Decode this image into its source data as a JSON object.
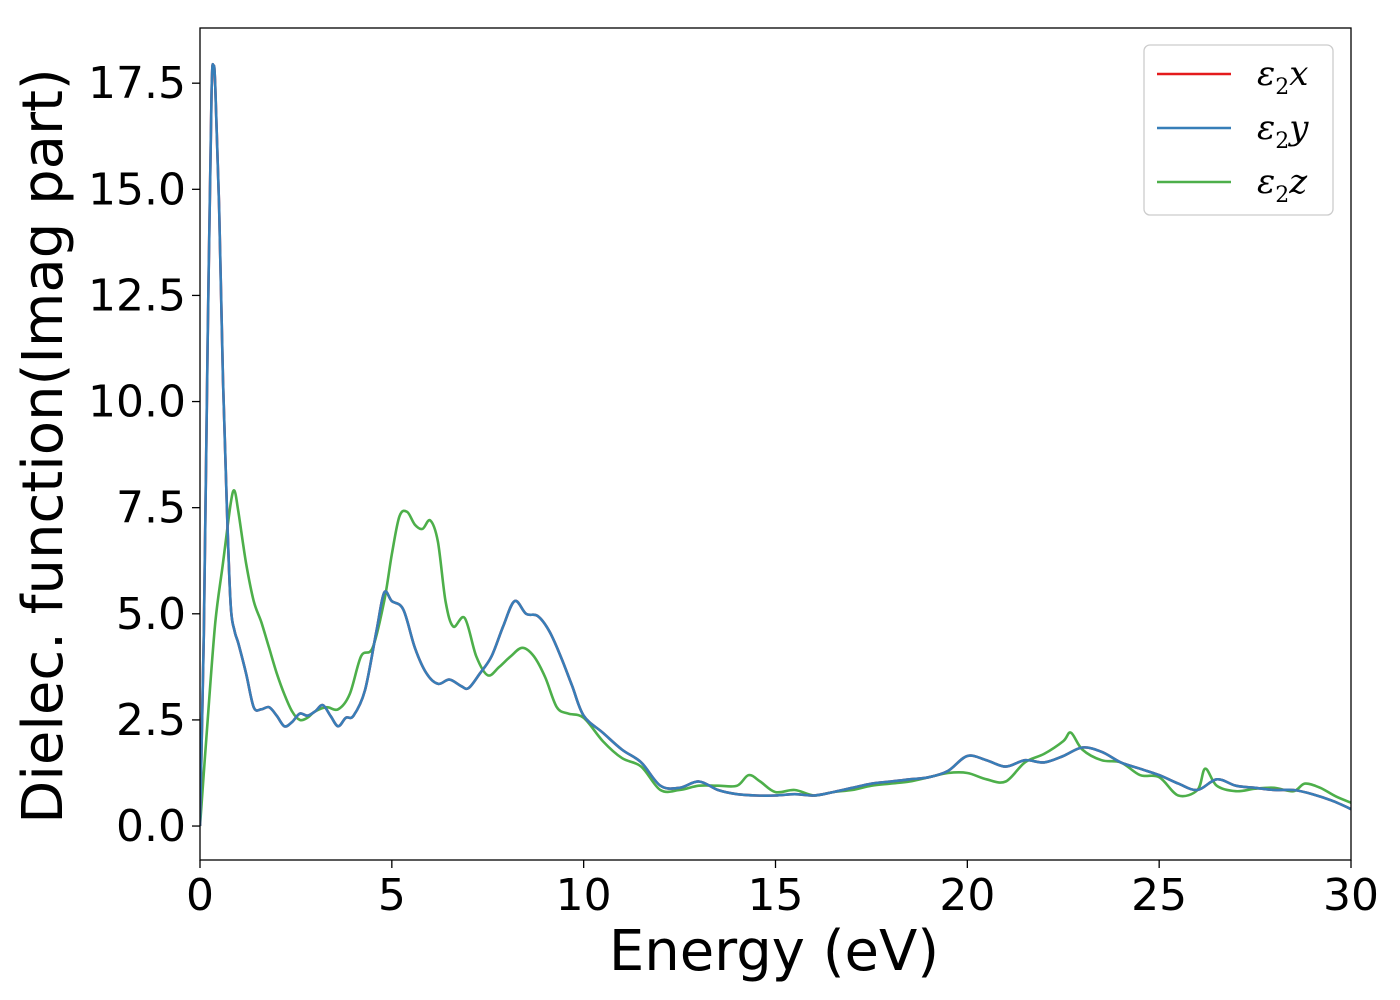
{
  "chart_data": {
    "type": "line",
    "title": "",
    "xlabel": "Energy (eV)",
    "ylabel": "Dielec. function(Imag part)",
    "xlim": [
      0,
      30
    ],
    "ylim": [
      -0.8,
      18.8
    ],
    "xticks": [
      0,
      5,
      10,
      15,
      20,
      25,
      30
    ],
    "xtick_labels": [
      "0",
      "5",
      "10",
      "15",
      "20",
      "25",
      "30"
    ],
    "yticks": [
      0,
      2.5,
      5,
      7.5,
      10,
      12.5,
      15,
      17.5
    ],
    "ytick_labels": [
      "0.0",
      "2.5",
      "5.0",
      "7.5",
      "10.0",
      "12.5",
      "15.0",
      "17.5"
    ],
    "grid": false,
    "legend_position": "top-right",
    "series": [
      {
        "name_main": "ε",
        "name_sub": "2",
        "name_tail": "x",
        "color": "#e41a1c",
        "x": [
          0,
          0.1,
          0.2,
          0.3,
          0.35,
          0.4,
          0.5,
          0.6,
          0.7,
          0.8,
          0.9,
          1.0,
          1.2,
          1.4,
          1.6,
          1.8,
          2.0,
          2.2,
          2.4,
          2.6,
          2.8,
          3.0,
          3.2,
          3.4,
          3.6,
          3.8,
          4.0,
          4.3,
          4.6,
          4.8,
          5.0,
          5.3,
          5.6,
          5.9,
          6.2,
          6.5,
          6.8,
          7.0,
          7.3,
          7.6,
          7.9,
          8.2,
          8.5,
          8.8,
          9.1,
          9.4,
          9.7,
          10.0,
          10.5,
          11.0,
          11.5,
          12.0,
          12.5,
          13.0,
          13.5,
          14.0,
          14.5,
          15.0,
          15.5,
          16.0,
          16.5,
          17.0,
          17.5,
          18.0,
          18.5,
          19.0,
          19.5,
          20.0,
          20.5,
          21.0,
          21.5,
          22.0,
          22.5,
          23.0,
          23.5,
          24.0,
          24.5,
          25.0,
          25.5,
          26.0,
          26.5,
          27.0,
          27.5,
          28.0,
          28.5,
          29.0,
          29.5,
          30.0
        ],
        "y": [
          0.0,
          4.5,
          11.5,
          17.2,
          17.9,
          17.4,
          14.5,
          10.5,
          7.5,
          5.2,
          4.6,
          4.3,
          3.6,
          2.8,
          2.75,
          2.8,
          2.6,
          2.35,
          2.45,
          2.65,
          2.6,
          2.7,
          2.85,
          2.6,
          2.35,
          2.55,
          2.6,
          3.2,
          4.6,
          5.5,
          5.3,
          5.1,
          4.2,
          3.6,
          3.35,
          3.45,
          3.3,
          3.25,
          3.6,
          4.0,
          4.7,
          5.3,
          5.0,
          4.95,
          4.6,
          4.0,
          3.3,
          2.6,
          2.2,
          1.8,
          1.5,
          0.95,
          0.9,
          1.05,
          0.85,
          0.75,
          0.72,
          0.72,
          0.75,
          0.72,
          0.8,
          0.9,
          1.0,
          1.05,
          1.1,
          1.15,
          1.3,
          1.65,
          1.55,
          1.4,
          1.55,
          1.5,
          1.65,
          1.85,
          1.75,
          1.5,
          1.35,
          1.2,
          1.0,
          0.85,
          1.1,
          0.95,
          0.9,
          0.85,
          0.85,
          0.75,
          0.6,
          0.4
        ]
      },
      {
        "name_main": "ε",
        "name_sub": "2",
        "name_tail": "y",
        "color": "#377eb8",
        "x": [
          0,
          0.1,
          0.2,
          0.3,
          0.35,
          0.4,
          0.5,
          0.6,
          0.7,
          0.8,
          0.9,
          1.0,
          1.2,
          1.4,
          1.6,
          1.8,
          2.0,
          2.2,
          2.4,
          2.6,
          2.8,
          3.0,
          3.2,
          3.4,
          3.6,
          3.8,
          4.0,
          4.3,
          4.6,
          4.8,
          5.0,
          5.3,
          5.6,
          5.9,
          6.2,
          6.5,
          6.8,
          7.0,
          7.3,
          7.6,
          7.9,
          8.2,
          8.5,
          8.8,
          9.1,
          9.4,
          9.7,
          10.0,
          10.5,
          11.0,
          11.5,
          12.0,
          12.5,
          13.0,
          13.5,
          14.0,
          14.5,
          15.0,
          15.5,
          16.0,
          16.5,
          17.0,
          17.5,
          18.0,
          18.5,
          19.0,
          19.5,
          20.0,
          20.5,
          21.0,
          21.5,
          22.0,
          22.5,
          23.0,
          23.5,
          24.0,
          24.5,
          25.0,
          25.5,
          26.0,
          26.5,
          27.0,
          27.5,
          28.0,
          28.5,
          29.0,
          29.5,
          30.0
        ],
        "y": [
          0.0,
          4.5,
          11.5,
          17.2,
          17.9,
          17.4,
          14.5,
          10.5,
          7.5,
          5.2,
          4.6,
          4.3,
          3.6,
          2.8,
          2.75,
          2.8,
          2.6,
          2.35,
          2.45,
          2.65,
          2.6,
          2.7,
          2.85,
          2.6,
          2.35,
          2.55,
          2.6,
          3.2,
          4.6,
          5.5,
          5.3,
          5.1,
          4.2,
          3.6,
          3.35,
          3.45,
          3.3,
          3.25,
          3.6,
          4.0,
          4.7,
          5.3,
          5.0,
          4.95,
          4.6,
          4.0,
          3.3,
          2.6,
          2.2,
          1.8,
          1.5,
          0.95,
          0.9,
          1.05,
          0.85,
          0.75,
          0.72,
          0.72,
          0.75,
          0.72,
          0.8,
          0.9,
          1.0,
          1.05,
          1.1,
          1.15,
          1.3,
          1.65,
          1.55,
          1.4,
          1.55,
          1.5,
          1.65,
          1.85,
          1.75,
          1.5,
          1.35,
          1.2,
          1.0,
          0.85,
          1.1,
          0.95,
          0.9,
          0.85,
          0.85,
          0.75,
          0.6,
          0.4
        ]
      },
      {
        "name_main": "ε",
        "name_sub": "2",
        "name_tail": "z",
        "color": "#4daf4a",
        "x": [
          0,
          0.2,
          0.4,
          0.6,
          0.8,
          0.9,
          1.0,
          1.2,
          1.4,
          1.6,
          1.8,
          2.0,
          2.2,
          2.4,
          2.6,
          2.8,
          3.0,
          3.3,
          3.6,
          3.9,
          4.2,
          4.5,
          4.8,
          5.0,
          5.2,
          5.4,
          5.6,
          5.8,
          6.0,
          6.2,
          6.4,
          6.6,
          6.9,
          7.2,
          7.5,
          7.8,
          8.1,
          8.4,
          8.7,
          9.0,
          9.3,
          9.6,
          10.0,
          10.5,
          11.0,
          11.5,
          12.0,
          12.5,
          13.0,
          13.5,
          14.0,
          14.3,
          14.6,
          15.0,
          15.5,
          16.0,
          16.5,
          17.0,
          17.5,
          18.0,
          18.5,
          19.0,
          19.5,
          20.0,
          20.5,
          21.0,
          21.5,
          22.0,
          22.5,
          22.7,
          23.0,
          23.5,
          24.0,
          24.5,
          25.0,
          25.5,
          26.0,
          26.2,
          26.5,
          27.0,
          27.5,
          28.0,
          28.5,
          28.8,
          29.2,
          29.6,
          30.0
        ],
        "y": [
          0.0,
          2.5,
          4.8,
          6.2,
          7.6,
          7.9,
          7.4,
          6.2,
          5.3,
          4.8,
          4.2,
          3.6,
          3.1,
          2.7,
          2.5,
          2.55,
          2.7,
          2.8,
          2.75,
          3.1,
          4.0,
          4.2,
          5.3,
          6.4,
          7.3,
          7.4,
          7.1,
          7.0,
          7.2,
          6.7,
          5.3,
          4.7,
          4.9,
          4.0,
          3.55,
          3.75,
          4.0,
          4.2,
          4.0,
          3.5,
          2.8,
          2.65,
          2.55,
          2.0,
          1.6,
          1.4,
          0.85,
          0.85,
          0.95,
          0.95,
          0.95,
          1.2,
          1.05,
          0.8,
          0.85,
          0.72,
          0.8,
          0.85,
          0.95,
          1.0,
          1.05,
          1.15,
          1.25,
          1.25,
          1.1,
          1.05,
          1.5,
          1.7,
          2.0,
          2.2,
          1.8,
          1.55,
          1.5,
          1.2,
          1.15,
          0.72,
          0.85,
          1.35,
          0.95,
          0.82,
          0.88,
          0.9,
          0.82,
          1.0,
          0.9,
          0.7,
          0.55
        ]
      }
    ]
  }
}
